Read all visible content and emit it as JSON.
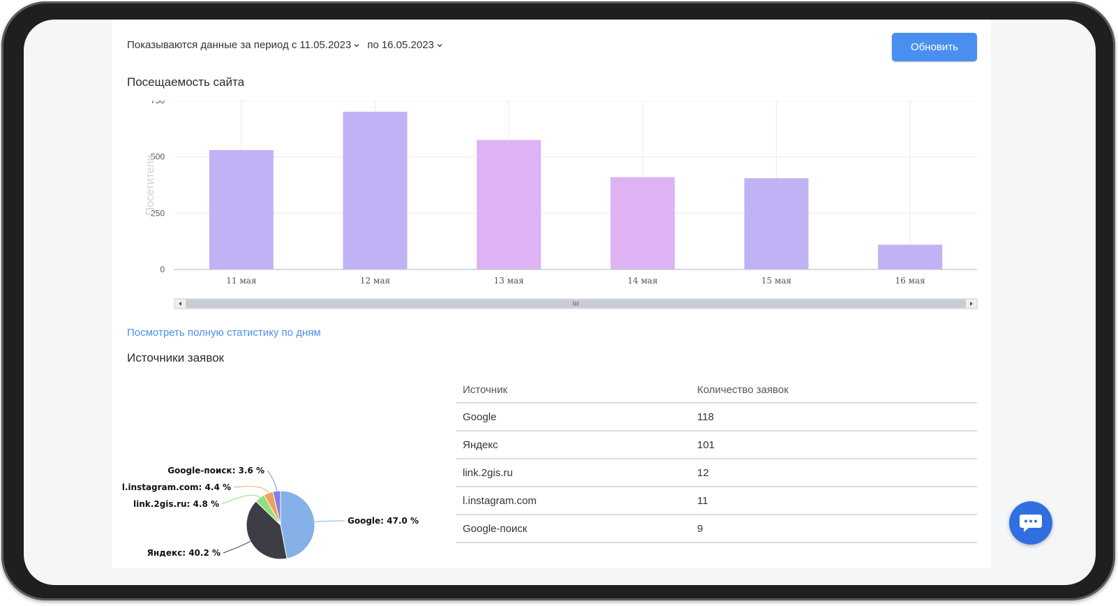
{
  "header": {
    "period_prefix": "Показываются данные за период с",
    "date_from": "11.05.2023",
    "date_to_prefix": "по",
    "date_to": "16.05.2023",
    "refresh_label": "Обновить"
  },
  "traffic": {
    "title": "Посещаемость сайта",
    "link_label": "Посмотреть полную статистику по дням"
  },
  "chart_data": [
    {
      "type": "bar",
      "title": "Посещаемость сайта",
      "xlabel": "",
      "ylabel": "Посетители",
      "categories": [
        "11 мая",
        "12 мая",
        "13 мая",
        "14 мая",
        "15 мая",
        "16 мая"
      ],
      "values": [
        530,
        700,
        575,
        410,
        405,
        110
      ],
      "bar_colors": [
        "#c0b2f4",
        "#c0b2f4",
        "#dfb2f4",
        "#dfb2f4",
        "#c0b2f4",
        "#c0b2f4"
      ],
      "yticks": [
        "0",
        "250",
        "500",
        "750"
      ],
      "ylim": [
        0,
        750
      ],
      "grid": true,
      "scrollbar": true
    },
    {
      "type": "pie",
      "title": "Источники заявок",
      "labels": [
        "Google",
        "Яндекс",
        "link.2gis.ru",
        "l.instagram.com",
        "Google-поиск"
      ],
      "values": [
        47.0,
        40.2,
        4.8,
        4.4,
        3.6
      ],
      "slice_labels": [
        "Google: 47.0 %",
        "Яндекс: 40.2 %",
        "link.2gis.ru: 4.8 %",
        "l.instagram.com: 4.4 %",
        "Google-поиск: 3.6 %"
      ],
      "colors": [
        "#85b0e8",
        "#3d3d45",
        "#90e07e",
        "#f2a05a",
        "#8080e6"
      ]
    }
  ],
  "sources": {
    "title": "Источники заявок",
    "columns": [
      "Источник",
      "Количество заявок"
    ],
    "rows": [
      [
        "Google",
        "118"
      ],
      [
        "Яндекс",
        "101"
      ],
      [
        "link.2gis.ru",
        "12"
      ],
      [
        "l.instagram.com",
        "11"
      ],
      [
        "Google-поиск",
        "9"
      ]
    ]
  },
  "chat": {
    "icon": "chat-bubble-icon",
    "color": "#2f6fe0"
  }
}
